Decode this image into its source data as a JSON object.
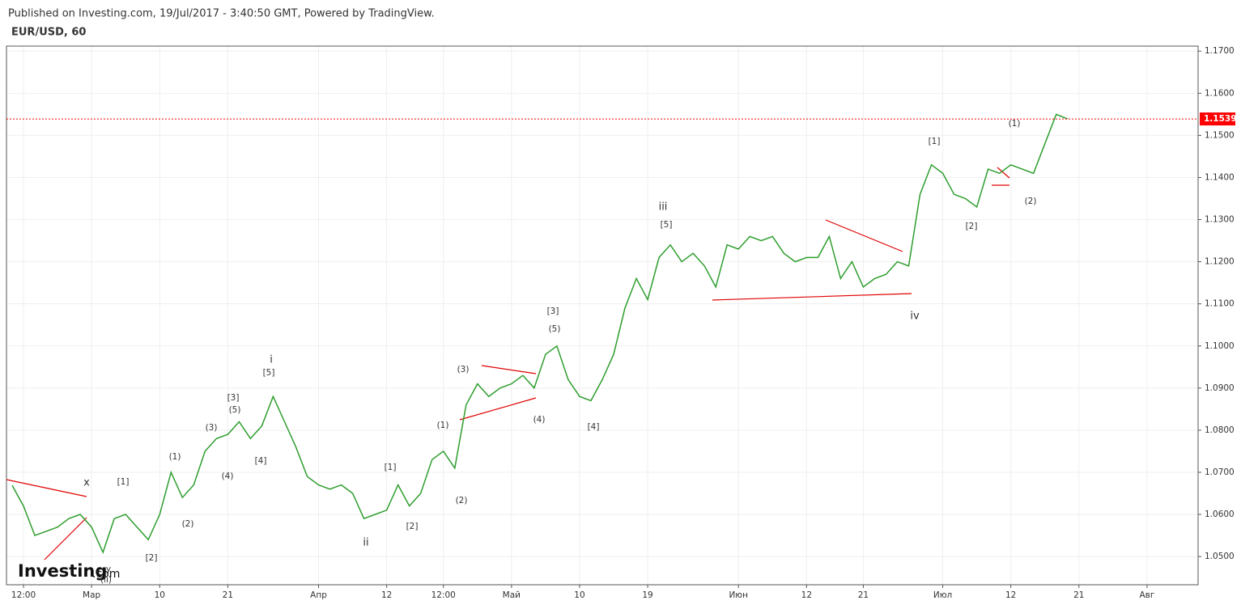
{
  "header": {
    "published": "Published on Investing.com, 19/Jul/2017 - 3:40:50 GMT, Powered by TradingView.",
    "symbol": "EUR/USD, 60",
    "logo": "Investing",
    "logo_suffix": ".com"
  },
  "chart_data": {
    "type": "line",
    "categories": [
      null,
      "12:00",
      null,
      null,
      null,
      null,
      null,
      "Мар",
      null,
      null,
      null,
      null,
      null,
      "10",
      null,
      null,
      null,
      null,
      null,
      "21",
      null,
      null,
      null,
      null,
      null,
      null,
      null,
      "Апр",
      null,
      null,
      null,
      null,
      null,
      "12",
      null,
      null,
      null,
      null,
      "12:00",
      null,
      null,
      null,
      null,
      null,
      "Май",
      null,
      null,
      null,
      null,
      null,
      "10",
      null,
      null,
      null,
      null,
      null,
      "19",
      null,
      null,
      null,
      null,
      null,
      null,
      null,
      "Июн",
      null,
      null,
      null,
      null,
      null,
      "12",
      null,
      null,
      null,
      null,
      "21",
      null,
      null,
      null,
      null,
      null,
      null,
      "Июл",
      null,
      null,
      null,
      null,
      null,
      "12",
      null,
      null,
      null,
      null,
      null,
      "21",
      null,
      null,
      null,
      null,
      null,
      "Авг",
      null,
      null,
      null,
      null
    ],
    "series": [
      {
        "name": "EUR/USD",
        "color": "#2e9e2e",
        "values": [
          1.0669,
          1.062,
          1.055,
          1.056,
          1.057,
          1.059,
          1.06,
          1.057,
          1.051,
          1.059,
          1.06,
          1.057,
          1.054,
          1.06,
          1.07,
          1.064,
          1.067,
          1.075,
          1.078,
          1.079,
          1.082,
          1.078,
          1.081,
          1.088,
          1.082,
          1.076,
          1.069,
          1.067,
          1.066,
          1.067,
          1.065,
          1.059,
          1.06,
          1.061,
          1.067,
          1.062,
          1.065,
          1.073,
          1.075,
          1.071,
          1.086,
          1.091,
          1.088,
          1.09,
          1.091,
          1.093,
          1.09,
          1.098,
          1.1,
          1.092,
          1.088,
          1.087,
          1.092,
          1.098,
          1.109,
          1.116,
          1.111,
          1.121,
          1.124,
          1.12,
          1.122,
          1.119,
          1.114,
          1.124,
          1.123,
          1.126,
          1.125,
          1.126,
          1.122,
          1.12,
          1.121,
          1.121,
          1.126,
          1.116,
          1.12,
          1.114,
          1.116,
          1.117,
          1.12,
          1.119,
          1.136,
          1.143,
          1.141,
          1.136,
          1.135,
          1.133,
          1.142,
          1.141,
          1.143,
          1.142,
          1.141,
          1.148,
          1.155,
          1.1539,
          null,
          null,
          null,
          null,
          null,
          null,
          null,
          null,
          null,
          null,
          null
        ]
      }
    ],
    "ylim": [
      1.0433,
      1.1712
    ],
    "yticks": [
      {
        "value": 1.05,
        "label": "1.0500"
      },
      {
        "value": 1.06,
        "label": "1.0600"
      },
      {
        "value": 1.07,
        "label": "1.0700"
      },
      {
        "value": 1.08,
        "label": "1.0800"
      },
      {
        "value": 1.09,
        "label": "1.0900"
      },
      {
        "value": 1.1,
        "label": "1.1000"
      },
      {
        "value": 1.11,
        "label": "1.1100"
      },
      {
        "value": 1.12,
        "label": "1.1200"
      },
      {
        "value": 1.13,
        "label": "1.1300"
      },
      {
        "value": 1.14,
        "label": "1.1400"
      },
      {
        "value": 1.15,
        "label": "1.1500"
      },
      {
        "value": 1.16,
        "label": "1.1600"
      },
      {
        "value": 1.17,
        "label": "1.1700"
      }
    ],
    "last_price": {
      "value": 1.1539,
      "label": "1.1539",
      "color": "#ff0000"
    },
    "grid": true,
    "annotations": [
      "x",
      "y",
      "(ii)",
      "[1]",
      "[2]",
      "(1)",
      "(2)",
      "(3)",
      "(4)",
      "[3]",
      "(5)",
      "[4]",
      "i",
      "[5]",
      "ii",
      "[1]",
      "[2]",
      "(1)",
      "(2)",
      "(3)",
      "(4)",
      "[3]",
      "(5)",
      "[4]",
      "iii",
      "[5]",
      "iv",
      "[1]",
      "[2]",
      "(1)",
      "(2)"
    ]
  }
}
